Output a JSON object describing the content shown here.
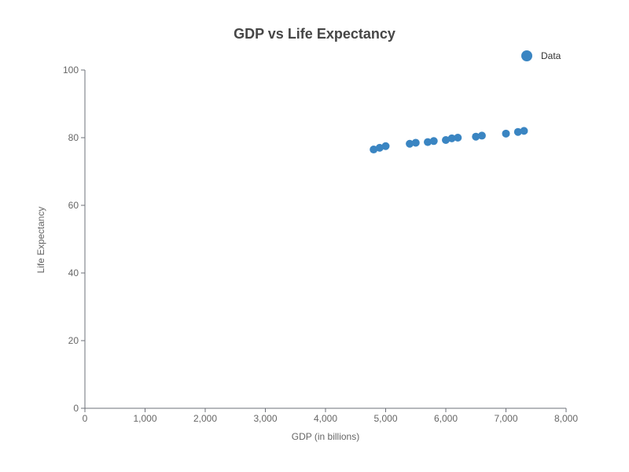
{
  "chart_data": {
    "type": "scatter",
    "title": "GDP vs Life Expectancy",
    "xlabel": "GDP (in billions)",
    "ylabel": "Life Expectancy",
    "xlim": [
      0,
      8000
    ],
    "ylim": [
      0,
      100
    ],
    "x_ticks": [
      "0",
      "1,000",
      "2,000",
      "3,000",
      "4,000",
      "5,000",
      "6,000",
      "7,000",
      "8,000"
    ],
    "y_ticks": [
      "0",
      "20",
      "40",
      "60",
      "80",
      "100"
    ],
    "x_tick_values": [
      0,
      1000,
      2000,
      3000,
      4000,
      5000,
      6000,
      7000,
      8000
    ],
    "y_tick_values": [
      0,
      20,
      40,
      60,
      80,
      100
    ],
    "grid": false,
    "legend_position": "top-right",
    "series": [
      {
        "name": "Data",
        "color": "#3a85c2",
        "points": [
          {
            "x": 4800,
            "y": 76.5
          },
          {
            "x": 4900,
            "y": 77.0
          },
          {
            "x": 5000,
            "y": 77.5
          },
          {
            "x": 5400,
            "y": 78.2
          },
          {
            "x": 5500,
            "y": 78.5
          },
          {
            "x": 5700,
            "y": 78.7
          },
          {
            "x": 5800,
            "y": 79.0
          },
          {
            "x": 6000,
            "y": 79.3
          },
          {
            "x": 6100,
            "y": 79.8
          },
          {
            "x": 6200,
            "y": 80.0
          },
          {
            "x": 6500,
            "y": 80.3
          },
          {
            "x": 6600,
            "y": 80.6
          },
          {
            "x": 7000,
            "y": 81.2
          },
          {
            "x": 7200,
            "y": 81.7
          },
          {
            "x": 7300,
            "y": 82.0
          }
        ]
      }
    ]
  },
  "colors": {
    "axis": "#6e7079",
    "point": "#3a85c2",
    "title": "#464646"
  }
}
